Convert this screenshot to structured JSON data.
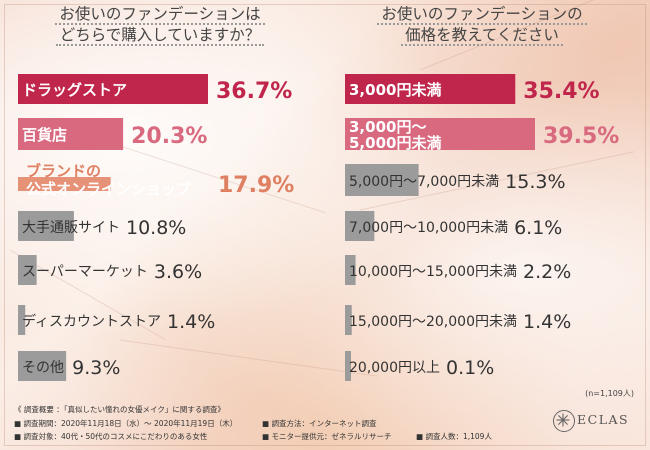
{
  "titles": {
    "left": [
      "お使いのファンデーションは",
      "どちらで購入していますか？"
    ],
    "right": [
      "お使いのファンデーションの",
      "価格を教えてください"
    ]
  },
  "note": "(n=1,109人)",
  "footer": {
    "overview": "《 調査概要 ：「真似したい憧れの女優メイク」に関する調査》",
    "period": "■ 調査期間：2020年11月18日（水）～ 2020年11月19日（木）",
    "target": "■ 調査対象：40代・50代のコスメにこだわりのある女性",
    "method": "■ 調査方法：インターネット調査",
    "provider": "■ モニター提供元：ゼネラルリサーチ",
    "count": "■ 調査人数：1,109人"
  },
  "logo": {
    "text": "ECLAS",
    "icon": "star-burst-icon"
  },
  "colors": {
    "top1": "#c0254b",
    "top2": "#d8697f",
    "top3": "#e08062",
    "rest": "#9b9b9b",
    "text_rest": "#333333"
  },
  "chart_data": [
    {
      "type": "bar",
      "categories": [
        "ドラッグストア",
        "百貨店",
        "ブランドの公式オンラインショップ",
        "大手通販サイト",
        "スーパーマーケット",
        "ディスカウントストア",
        "その他"
      ],
      "values": [
        36.7,
        20.3,
        17.9,
        10.8,
        3.6,
        1.4,
        9.3
      ],
      "labels": [
        "36.7%",
        "20.3%",
        "17.9%",
        "10.8%",
        "3.6%",
        "1.4%",
        "9.3%"
      ],
      "title": "お使いのファンデーションはどちらで購入していますか？"
    },
    {
      "type": "bar",
      "categories": [
        "3,000円未満",
        "3,000円～5,000円未満",
        "5,000円～7,000円未満",
        "7,000円～10,000円未満",
        "10,000円～15,000円未満",
        "15,000円～20,000円未満",
        "20,000円以上"
      ],
      "values": [
        35.4,
        39.5,
        15.3,
        6.1,
        2.2,
        1.4,
        0.1
      ],
      "labels": [
        "35.4%",
        "39.5%",
        "15.3%",
        "6.1%",
        "2.2%",
        "1.4%",
        "0.1%"
      ],
      "title": "お使いのファンデーションの価格を教えてください"
    }
  ]
}
